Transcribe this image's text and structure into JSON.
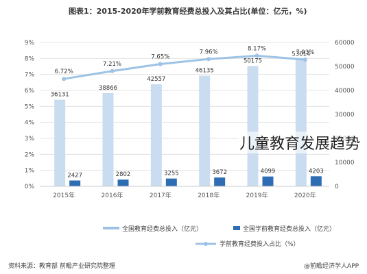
{
  "title": "图表1：2015-2020年学前教育经费总投入及其占比(单位：亿元，%)",
  "overlay_text": "儿童教育发展趋势",
  "source": "资料来源：教育部 前瞻产业研究院整理",
  "watermark": "@前瞻经济学人APP",
  "colors": {
    "bar_light": "#c9dcf0",
    "bar_dark": "#2e6db4",
    "line": "#9cc3e6",
    "grid": "#e3e3e3",
    "axis_text": "#555555"
  },
  "chart_data": {
    "type": "bar",
    "categories": [
      "2015年",
      "2016年",
      "2017年",
      "2018年",
      "2019年",
      "2020年"
    ],
    "series": [
      {
        "name": "全国教育经费总投入（亿元）",
        "axis": "right",
        "values": [
          36131,
          38866,
          42557,
          46135,
          50175,
          53014
        ]
      },
      {
        "name": "全国学前教育经费总投入（亿元）",
        "axis": "right",
        "values": [
          2427,
          2802,
          3255,
          3672,
          4099,
          4203
        ]
      },
      {
        "name": "学前教育经费投入占比（%）",
        "axis": "left",
        "type": "line",
        "values": [
          6.72,
          7.21,
          7.65,
          7.96,
          8.17,
          7.93
        ]
      }
    ],
    "value_labels_total": [
      "36131",
      "38866",
      "42557",
      "46135",
      "50175",
      "53014"
    ],
    "value_labels_preschool": [
      "2427",
      "2802",
      "3255",
      "3672",
      "4099",
      "4203"
    ],
    "value_labels_share": [
      "6.72%",
      "7.21%",
      "7.65%",
      "7.96%",
      "8.17%",
      "7.93%"
    ],
    "y_left": {
      "ylim": [
        0,
        9
      ],
      "ticks": [
        "0%",
        "1%",
        "2%",
        "3%",
        "4%",
        "5%",
        "6%",
        "7%",
        "8%",
        "9%"
      ]
    },
    "y_right": {
      "ylim": [
        0,
        60000
      ],
      "ticks": [
        "0",
        "10000",
        "20000",
        "30000",
        "40000",
        "50000",
        "60000"
      ]
    },
    "legend": {
      "total": "全国教育经费总投入（亿元）",
      "preschool": "全国学前教育经费总投入（亿元）",
      "share": "学前教育经费投入占比（%）"
    },
    "grid": true,
    "legend_position": "bottom"
  }
}
